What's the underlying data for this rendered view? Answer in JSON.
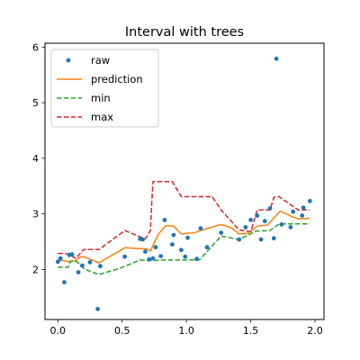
{
  "chart_data": {
    "type": "scatter",
    "title": "Interval with trees",
    "xlabel": "",
    "ylabel": "",
    "xlim": [
      -0.1,
      2.07
    ],
    "ylim": [
      1.1,
      6.07
    ],
    "xticks": [
      0.0,
      0.5,
      1.0,
      1.5,
      2.0
    ],
    "xtick_labels": [
      "0.0",
      "0.5",
      "1.0",
      "1.5",
      "2.0"
    ],
    "yticks": [
      2,
      3,
      4,
      5,
      6
    ],
    "ytick_labels": [
      "2",
      "3",
      "4",
      "5",
      "6"
    ],
    "grid": false,
    "legend_position": "top-left",
    "series": [
      {
        "name": "raw",
        "kind": "scatter",
        "color": "#1f77b4",
        "x": [
          0.0,
          0.02,
          0.05,
          0.09,
          0.11,
          0.16,
          0.19,
          0.25,
          0.31,
          0.33,
          0.52,
          0.64,
          0.66,
          0.68,
          0.71,
          0.74,
          0.76,
          0.8,
          0.83,
          0.89,
          0.9,
          0.96,
          0.99,
          1.01,
          1.08,
          1.11,
          1.16,
          1.27,
          1.41,
          1.46,
          1.5,
          1.55,
          1.58,
          1.61,
          1.65,
          1.68,
          1.7,
          1.74,
          1.81,
          1.83,
          1.9,
          1.91,
          1.96
        ],
        "y": [
          2.14,
          2.2,
          1.77,
          2.26,
          2.27,
          1.95,
          2.07,
          2.13,
          1.29,
          2.06,
          2.23,
          2.55,
          2.54,
          2.32,
          2.18,
          2.2,
          2.4,
          2.24,
          2.89,
          2.45,
          2.62,
          2.35,
          2.23,
          2.57,
          2.19,
          2.74,
          2.4,
          2.66,
          2.54,
          2.76,
          2.89,
          2.97,
          2.54,
          2.87,
          3.1,
          2.56,
          5.79,
          2.81,
          2.76,
          3.04,
          2.97,
          3.11,
          3.23
        ]
      },
      {
        "name": "prediction",
        "kind": "line",
        "color": "#ff7f0e",
        "x": [
          0.0,
          0.05,
          0.08,
          0.14,
          0.17,
          0.2,
          0.32,
          0.52,
          0.69,
          0.72,
          0.78,
          0.84,
          0.9,
          0.96,
          1.06,
          1.15,
          1.27,
          1.35,
          1.41,
          1.48,
          1.55,
          1.63,
          1.73,
          1.82,
          1.87,
          1.96
        ],
        "y": [
          2.16,
          2.16,
          2.14,
          2.16,
          2.22,
          2.23,
          2.12,
          2.39,
          2.37,
          2.33,
          2.63,
          2.79,
          2.78,
          2.64,
          2.66,
          2.73,
          2.81,
          2.75,
          2.64,
          2.65,
          2.78,
          2.8,
          3.05,
          2.95,
          2.91,
          2.92
        ]
      },
      {
        "name": "min",
        "kind": "line",
        "style": "dashed",
        "color": "#2ca02c",
        "x": [
          0.0,
          0.08,
          0.1,
          0.15,
          0.21,
          0.32,
          0.48,
          0.64,
          0.72,
          0.82,
          1.1,
          1.27,
          1.41,
          1.54,
          1.65,
          1.72,
          1.96
        ],
        "y": [
          2.04,
          2.04,
          2.15,
          2.14,
          2.0,
          1.91,
          2.02,
          2.17,
          2.16,
          2.17,
          2.17,
          2.6,
          2.54,
          2.69,
          2.7,
          2.82,
          2.82
        ]
      },
      {
        "name": "max",
        "kind": "line",
        "style": "dashed",
        "color": "#d62728",
        "x": [
          0.0,
          0.08,
          0.14,
          0.2,
          0.32,
          0.52,
          0.68,
          0.72,
          0.73,
          0.74,
          0.89,
          0.96,
          1.2,
          1.27,
          1.41,
          1.5,
          1.55,
          1.65,
          1.68,
          1.72,
          1.87,
          1.96
        ],
        "y": [
          2.29,
          2.28,
          2.2,
          2.36,
          2.36,
          2.7,
          2.55,
          2.7,
          3.2,
          3.58,
          3.58,
          3.31,
          3.31,
          3.07,
          2.71,
          2.68,
          3.07,
          3.07,
          3.3,
          3.31,
          3.07,
          3.07
        ]
      }
    ]
  }
}
